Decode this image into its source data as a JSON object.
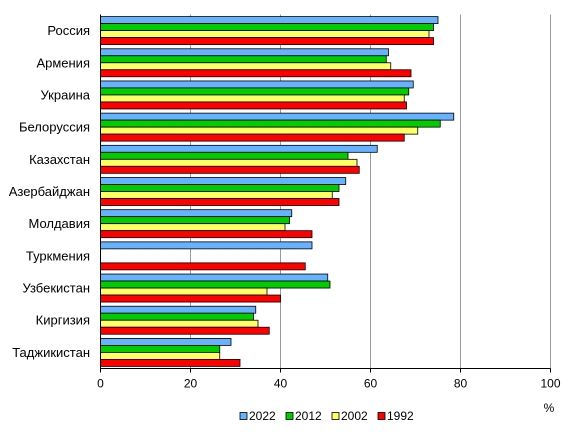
{
  "chart_data": {
    "type": "bar",
    "orientation": "horizontal",
    "categories": [
      "Россия",
      "Армения",
      "Украина",
      "Белоруссия",
      "Казахстан",
      "Азербайджан",
      "Молдавия",
      "Туркмения",
      "Узбекистан",
      "Киргизия",
      "Таджикистан"
    ],
    "series": [
      {
        "name": "2022",
        "color": "#66B2FF",
        "values": [
          75,
          64,
          69.5,
          78.5,
          61.5,
          54.5,
          42.5,
          47,
          50.5,
          34.5,
          29
        ]
      },
      {
        "name": "2012",
        "color": "#00CC00",
        "values": [
          74,
          63.5,
          68.5,
          75.5,
          55,
          53,
          42,
          null,
          51,
          34,
          26.5
        ]
      },
      {
        "name": "2002",
        "color": "#FFFF66",
        "values": [
          73,
          64.5,
          67.5,
          70.5,
          57,
          51.5,
          41,
          null,
          37,
          35,
          26.5
        ]
      },
      {
        "name": "1992",
        "color": "#FF0000",
        "values": [
          74,
          69,
          68,
          67.5,
          57.5,
          53,
          47,
          45.5,
          40,
          37.5,
          31
        ]
      }
    ],
    "xlabel": "%",
    "xlim": [
      0,
      100
    ],
    "xticks": [
      0,
      20,
      40,
      60,
      80,
      100
    ],
    "grid": "vertical",
    "legend": "bottom"
  }
}
